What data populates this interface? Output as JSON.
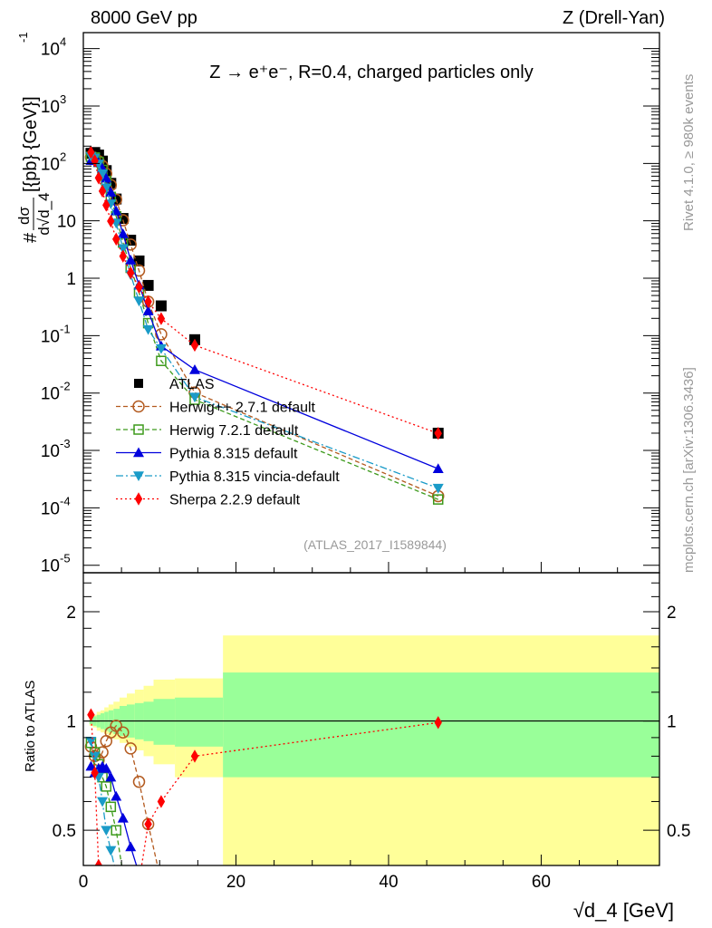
{
  "chart_data": {
    "type": "scatter",
    "header_left": "8000 GeV pp",
    "header_right": "Z (Drell-Yan)",
    "title": "Z → e⁺e⁻, R=0.4, charged particles only",
    "ylabel": "dσ/d√d_4 [{pb} {GeV}⁻¹]",
    "ylabel_parts": {
      "hash": "#",
      "num": "dσ",
      "den": "d√d_4",
      "unit": "[{pb} {GeV}]",
      "unit_exp": "-1"
    },
    "xlabel": "√d_4 [GeV]",
    "ratio_ylabel": "Ratio to ATLAS",
    "side_text_1": "Rivet 4.1.0, ≥ 980k events",
    "side_text_2": "mcplots.cern.ch [arXiv:1306.3436]",
    "analysis_label": "(ATLAS_2017_I1589844)",
    "xlim": [
      0,
      75.5
    ],
    "ylim": [
      7.4e-06,
      19000
    ],
    "yscale": "log",
    "ratio_ylim": [
      0.4,
      2.56
    ],
    "ratio_yscale": "log",
    "x_ticks": [
      {
        "v": 0,
        "label": "0"
      },
      {
        "v": 20,
        "label": "20"
      },
      {
        "v": 40,
        "label": "40"
      },
      {
        "v": 60,
        "label": "60"
      }
    ],
    "y_ticks": [
      {
        "v": 1e-05,
        "base": "10",
        "exp": "-5"
      },
      {
        "v": 0.0001,
        "base": "10",
        "exp": "-4"
      },
      {
        "v": 0.001,
        "base": "10",
        "exp": "-3"
      },
      {
        "v": 0.01,
        "base": "10",
        "exp": "-2"
      },
      {
        "v": 0.1,
        "base": "10",
        "exp": "-1"
      },
      {
        "v": 1,
        "base": "1",
        "exp": ""
      },
      {
        "v": 10,
        "base": "10",
        "exp": ""
      },
      {
        "v": 100,
        "base": "10",
        "exp": "2"
      },
      {
        "v": 1000,
        "base": "10",
        "exp": "3"
      },
      {
        "v": 10000,
        "base": "10",
        "exp": "4"
      }
    ],
    "ratio_ticks": [
      {
        "v": 0.5,
        "label": "0.5"
      },
      {
        "v": 1,
        "label": "1"
      },
      {
        "v": 2,
        "label": "2"
      }
    ],
    "x": [
      1.0,
      1.5,
      2.0,
      2.5,
      3.0,
      3.6,
      4.3,
      5.2,
      6.2,
      7.3,
      8.5,
      10.2,
      14.6,
      46.5
    ],
    "bin_edges": [
      0.8,
      1.25,
      1.75,
      2.25,
      2.75,
      3.3,
      3.95,
      4.75,
      5.7,
      6.75,
      7.9,
      9.2,
      12.0,
      18.3,
      75.5
    ],
    "bands": {
      "stat_lo": [
        0.98,
        0.97,
        0.96,
        0.95,
        0.94,
        0.93,
        0.92,
        0.91,
        0.9,
        0.89,
        0.88,
        0.86,
        0.85,
        0.7
      ],
      "stat_hi": [
        1.02,
        1.03,
        1.04,
        1.05,
        1.06,
        1.07,
        1.08,
        1.1,
        1.11,
        1.12,
        1.13,
        1.15,
        1.16,
        1.36
      ],
      "total_lo": [
        0.97,
        0.96,
        0.94,
        0.93,
        0.92,
        0.9,
        0.89,
        0.87,
        0.85,
        0.83,
        0.8,
        0.76,
        0.7,
        0.3
      ],
      "total_hi": [
        1.03,
        1.04,
        1.06,
        1.07,
        1.09,
        1.11,
        1.13,
        1.16,
        1.19,
        1.22,
        1.25,
        1.3,
        1.31,
        1.72
      ],
      "stat_color": "#99ff99",
      "total_color": "#ffff99"
    },
    "data": {
      "name": "ATLAS",
      "color": "#000000",
      "marker": "square",
      "values": [
        150,
        155,
        140,
        110,
        75,
        45,
        24,
        11,
        4.6,
        2.0,
        0.75,
        0.33,
        0.085,
        0.002
      ]
    },
    "series": [
      {
        "name": "Herwig++ 2.7.1 default",
        "color": "#b35a1f",
        "marker": "open-circle",
        "dash": "5,3",
        "ratio": [
          0.85,
          0.8,
          0.78,
          0.82,
          0.88,
          0.93,
          0.97,
          0.93,
          0.84,
          0.68,
          0.52,
          0.32,
          0.12,
          0.08
        ]
      },
      {
        "name": "Herwig 7.2.1 default",
        "color": "#3d9a1c",
        "marker": "open-square",
        "dash": "5,3",
        "ratio": [
          0.87,
          0.82,
          0.76,
          0.7,
          0.66,
          0.58,
          0.5,
          0.38,
          0.33,
          0.28,
          0.22,
          0.11,
          0.09,
          0.07
        ]
      },
      {
        "name": "Pythia 8.315 default",
        "color": "#0000dd",
        "marker": "triangle-up",
        "dash": "",
        "ratio": [
          0.75,
          0.72,
          0.74,
          0.75,
          0.74,
          0.7,
          0.62,
          0.54,
          0.45,
          0.38,
          0.36,
          0.2,
          0.3,
          0.24
        ]
      },
      {
        "name": "Pythia 8.315 vincia-default",
        "color": "#1a9bc8",
        "marker": "triangle-down",
        "dash": "8,3,2,3",
        "ratio": [
          0.88,
          0.8,
          0.7,
          0.6,
          0.5,
          0.44,
          0.38,
          0.3,
          0.25,
          0.2,
          0.17,
          0.18,
          0.1,
          0.11
        ]
      },
      {
        "name": "Sherpa 2.2.9 default",
        "color": "#ff0000",
        "marker": "diamond",
        "dash": "2,3",
        "ratio": [
          1.04,
          0.72,
          0.4,
          0.3,
          0.25,
          0.22,
          0.2,
          0.22,
          0.27,
          0.35,
          0.52,
          0.6,
          0.8,
          0.99
        ]
      }
    ]
  }
}
